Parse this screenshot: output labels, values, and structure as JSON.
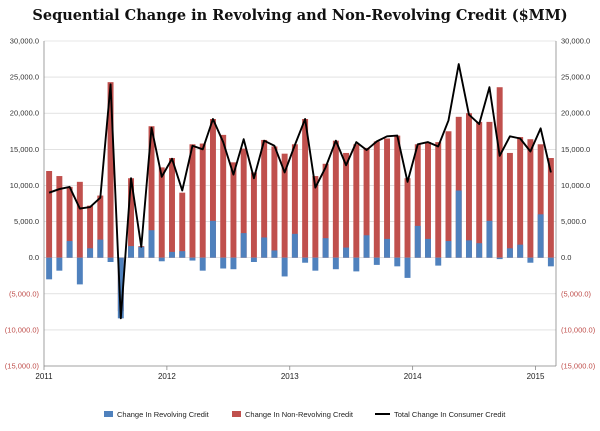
{
  "chart_data": {
    "type": "bar",
    "title": "Sequential Change in Revolving and Non-Revolving Credit ($MM)",
    "ylim": [
      -15000,
      30000
    ],
    "y_ticks": [
      {
        "value": 30000,
        "label": "30,000.0"
      },
      {
        "value": 25000,
        "label": "25,000.0"
      },
      {
        "value": 20000,
        "label": "20,000.0"
      },
      {
        "value": 15000,
        "label": "15,000.0"
      },
      {
        "value": 10000,
        "label": "10,000.0"
      },
      {
        "value": 5000,
        "label": "5,000.0"
      },
      {
        "value": 0,
        "label": "0.0"
      },
      {
        "value": -5000,
        "label": "(5,000.0)"
      },
      {
        "value": -10000,
        "label": "(10,000.0)"
      },
      {
        "value": -15000,
        "label": "(15,000.0)"
      }
    ],
    "x_ticks": [
      {
        "index": 0,
        "label": "2011"
      },
      {
        "index": 12,
        "label": "2012"
      },
      {
        "index": 24,
        "label": "2013"
      },
      {
        "index": 36,
        "label": "2014"
      },
      {
        "index": 48,
        "label": "2015"
      }
    ],
    "grid": true,
    "legend_position": "bottom",
    "series": [
      {
        "name": "Change In Revolving Credit",
        "kind": "bar",
        "color": "#4f81bd",
        "values": [
          -3000,
          -1800,
          2300,
          -3700,
          1300,
          2500,
          -600,
          -8400,
          1600,
          1500,
          3800,
          -500,
          800,
          900,
          -400,
          -1800,
          5100,
          -1500,
          -1600,
          3400,
          -600,
          2800,
          1000,
          -2600,
          3300,
          -700,
          -1800,
          2700,
          -1600,
          1400,
          -1900,
          3100,
          -1000,
          2600,
          -1200,
          -2800,
          4400,
          2600,
          -1100,
          2300,
          9300,
          2400,
          2000,
          5100,
          -200,
          1300,
          1800,
          -700,
          6000,
          -1200
        ]
      },
      {
        "name": "Change In Non-Revolving Credit",
        "kind": "bar",
        "color": "#c0504d",
        "values": [
          12000,
          11300,
          9800,
          10500,
          7200,
          8600,
          24300,
          -7400,
          11000,
          1600,
          18200,
          12500,
          13800,
          9000,
          15700,
          15800,
          19200,
          17000,
          13200,
          15100,
          11800,
          16300,
          15400,
          14400,
          15700,
          19200,
          11300,
          13000,
          16200,
          14500,
          15700,
          15200,
          16100,
          16500,
          16900,
          11000,
          15700,
          16000,
          16000,
          17500,
          19500,
          20000,
          18800,
          18800,
          23600,
          14500,
          16700,
          16400,
          15700,
          13800
        ]
      },
      {
        "name": "Total Change In Consumer Credit",
        "kind": "line",
        "color": "#000000",
        "values": [
          9000,
          9500,
          9800,
          6800,
          7000,
          8300,
          24000,
          -8400,
          11000,
          1500,
          18000,
          11200,
          13700,
          9300,
          15500,
          15000,
          19200,
          16000,
          11500,
          16400,
          11000,
          16200,
          15500,
          11800,
          15600,
          19200,
          9700,
          12500,
          16200,
          12800,
          16000,
          14900,
          16100,
          16800,
          16900,
          10500,
          15700,
          16000,
          15400,
          19000,
          26800,
          19800,
          18500,
          23600,
          14100,
          16800,
          16500,
          14700,
          17900,
          11800
        ]
      }
    ]
  }
}
